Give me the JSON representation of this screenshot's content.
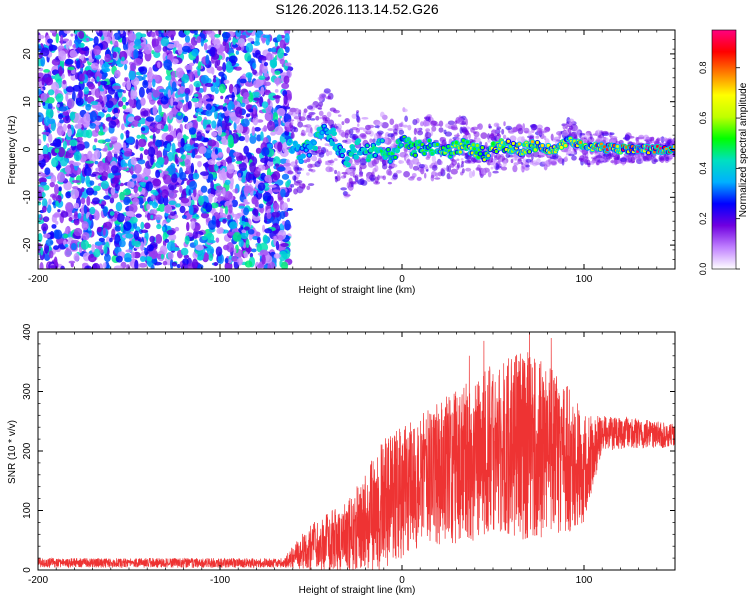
{
  "title": "S126.2026.113.14.52.G26",
  "chart_data": [
    {
      "type": "heatmap",
      "name": "spectrogram",
      "xlabel": "Height of straight line (km)",
      "ylabel": "Frequency (Hz)",
      "xlim": [
        -200,
        150
      ],
      "ylim": [
        -25,
        25
      ],
      "xticks": [
        -200,
        -100,
        0,
        100
      ],
      "yticks": [
        -20,
        -10,
        0,
        10,
        20
      ],
      "colorbar": {
        "label": "Normalized spectral amplitude",
        "range": [
          0.0,
          0.95
        ],
        "ticks": [
          "0.0",
          "0.2",
          "0.4",
          "0.6",
          "0.8"
        ],
        "stops": [
          "#ffffff",
          "#c080ff",
          "#7000e0",
          "#0000ff",
          "#00b0ff",
          "#00e0c0",
          "#00ff00",
          "#c0ff00",
          "#ffff00",
          "#ff8000",
          "#ff0000",
          "#ff0080"
        ]
      },
      "noise_region_x": [
        -200,
        -62
      ],
      "signal_ridge": [
        {
          "x": -62,
          "y": 0.5
        },
        {
          "x": -55,
          "y": -1.0
        },
        {
          "x": -48,
          "y": 1.5
        },
        {
          "x": -42,
          "y": 4.5
        },
        {
          "x": -36,
          "y": 1.5
        },
        {
          "x": -30,
          "y": -2.0
        },
        {
          "x": -24,
          "y": 0.5
        },
        {
          "x": -18,
          "y": -1.0
        },
        {
          "x": -12,
          "y": 1.0
        },
        {
          "x": -6,
          "y": -1.5
        },
        {
          "x": 0,
          "y": 2.0
        },
        {
          "x": 6,
          "y": 0.0
        },
        {
          "x": 15,
          "y": 0.5
        },
        {
          "x": 25,
          "y": -0.5
        },
        {
          "x": 35,
          "y": 1.0
        },
        {
          "x": 45,
          "y": -1.0
        },
        {
          "x": 55,
          "y": 1.0
        },
        {
          "x": 65,
          "y": 0.0
        },
        {
          "x": 75,
          "y": 1.0
        },
        {
          "x": 85,
          "y": -0.5
        },
        {
          "x": 92,
          "y": 2.5
        },
        {
          "x": 100,
          "y": 0.0
        },
        {
          "x": 110,
          "y": 0.5
        },
        {
          "x": 120,
          "y": 0.0
        },
        {
          "x": 130,
          "y": 0.0
        },
        {
          "x": 140,
          "y": 0.0
        },
        {
          "x": 150,
          "y": 0.0
        }
      ]
    },
    {
      "type": "line",
      "name": "snr",
      "xlabel": "Height of straight line (km)",
      "ylabel": "SNR (10 * v/v)",
      "xlim": [
        -200,
        150
      ],
      "ylim": [
        0,
        400
      ],
      "xticks": [
        -200,
        -100,
        0,
        100
      ],
      "yticks": [
        0,
        100,
        200,
        300,
        400
      ],
      "color": "#ee3333",
      "envelope": [
        {
          "x": -200,
          "mean": 12,
          "spread": 8
        },
        {
          "x": -65,
          "mean": 12,
          "spread": 8
        },
        {
          "x": -50,
          "mean": 40,
          "spread": 40
        },
        {
          "x": -30,
          "mean": 55,
          "spread": 60
        },
        {
          "x": -10,
          "mean": 110,
          "spread": 110
        },
        {
          "x": 10,
          "mean": 150,
          "spread": 110
        },
        {
          "x": 30,
          "mean": 175,
          "spread": 130
        },
        {
          "x": 50,
          "mean": 200,
          "spread": 150
        },
        {
          "x": 70,
          "mean": 210,
          "spread": 160
        },
        {
          "x": 90,
          "mean": 190,
          "spread": 130
        },
        {
          "x": 100,
          "mean": 170,
          "spread": 90
        },
        {
          "x": 110,
          "mean": 230,
          "spread": 30
        },
        {
          "x": 130,
          "mean": 230,
          "spread": 25
        },
        {
          "x": 150,
          "mean": 225,
          "spread": 20
        }
      ],
      "peaks": [
        {
          "x": 37,
          "y": 360
        },
        {
          "x": 45,
          "y": 385
        },
        {
          "x": 70,
          "y": 410
        },
        {
          "x": 82,
          "y": 390
        },
        {
          "x": 60,
          "y": 340
        }
      ]
    }
  ]
}
